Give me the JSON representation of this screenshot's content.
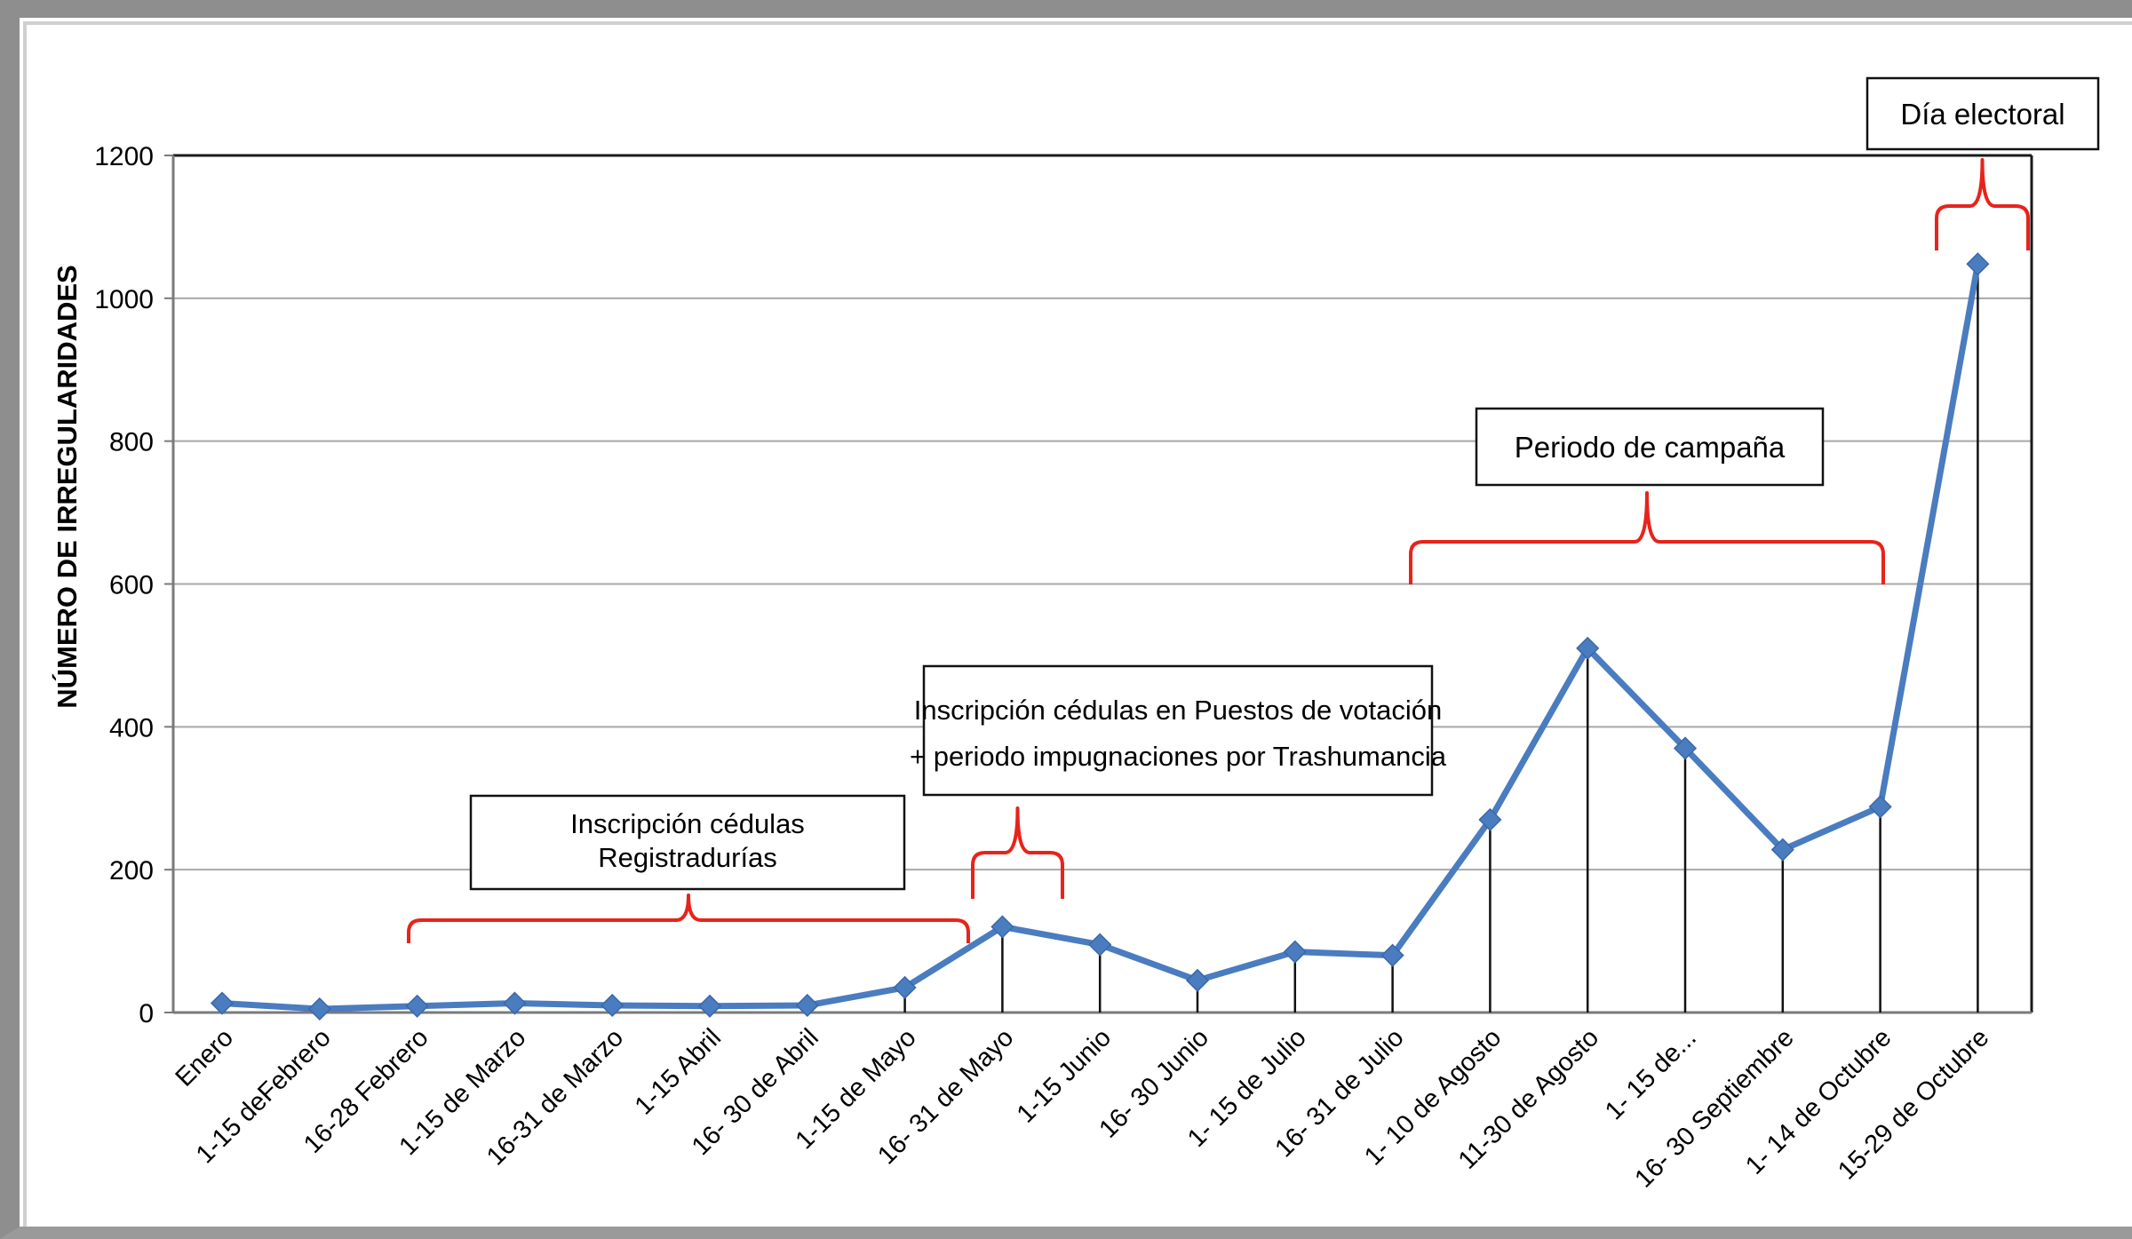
{
  "chart_data": {
    "type": "line",
    "ylabel": "NÚMERO DE IRREGULARIDADES",
    "xlabel": "",
    "ylim": [
      0,
      1200
    ],
    "yticks": [
      0,
      200,
      400,
      600,
      800,
      1000,
      1200
    ],
    "grid": true,
    "categories": [
      "Enero",
      "1-15 deFebrero",
      "16-28  Febrero",
      "1-15 de Marzo",
      "16-31 de Marzo",
      "1-15 Abril",
      "16- 30 de Abril",
      "1-15 de  Mayo",
      "16- 31 de Mayo",
      "1-15 Junio",
      "16- 30 Junio",
      "1- 15 de Julio",
      "16- 31 de Julio",
      "1- 10 de Agosto",
      "11-30 de Agosto",
      "1- 15 de...",
      "16- 30 Septiembre",
      "1- 14 de Octubre",
      "15-29 de Octubre"
    ],
    "series": [
      {
        "values": [
          13,
          5,
          9,
          13,
          10,
          9,
          10,
          35,
          120,
          95,
          45,
          85,
          80,
          270,
          510,
          370,
          228,
          288,
          1048
        ]
      }
    ],
    "color": "#4a7cc0",
    "annotations": [
      {
        "id": "registradurias",
        "lines": [
          "Inscripción cédulas",
          "Registradurías"
        ]
      },
      {
        "id": "puestos",
        "lines": [
          "Inscripción cédulas en Puestos de votación",
          "+ periodo impugnaciones por Trashumancia"
        ]
      },
      {
        "id": "campana",
        "lines": [
          "Periodo de campaña"
        ]
      },
      {
        "id": "electoral",
        "lines": [
          "Día electoral"
        ]
      }
    ],
    "bracket_color": "#e8231b"
  }
}
